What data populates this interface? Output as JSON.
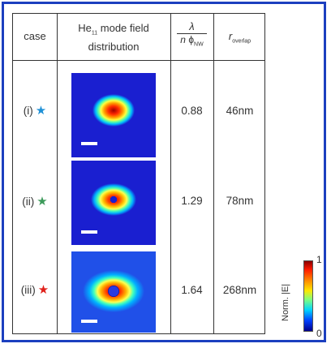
{
  "headers": {
    "case": "case",
    "mode_pre": "He",
    "mode_sub": "11",
    "mode_post": " mode field",
    "mode_line2": "distribution",
    "ratio_num": "λ",
    "ratio_den_n": "n",
    "ratio_den_phi": "ϕ",
    "ratio_den_sub": "NW",
    "r_main": "r",
    "r_sub": "overlap"
  },
  "rows": [
    {
      "case": "(i)",
      "star_color": "#1e90d6",
      "ratio": "0.88",
      "r_overlap": "46nm"
    },
    {
      "case": "(ii)",
      "star_color": "#3c9a5a",
      "ratio": "1.29",
      "r_overlap": "78nm"
    },
    {
      "case": "(iii)",
      "star_color": "#e0201a",
      "ratio": "1.64",
      "r_overlap": "268nm"
    }
  ],
  "colorbar": {
    "title": "Norm. |E|",
    "max_label": "1",
    "min_label": "0"
  }
}
